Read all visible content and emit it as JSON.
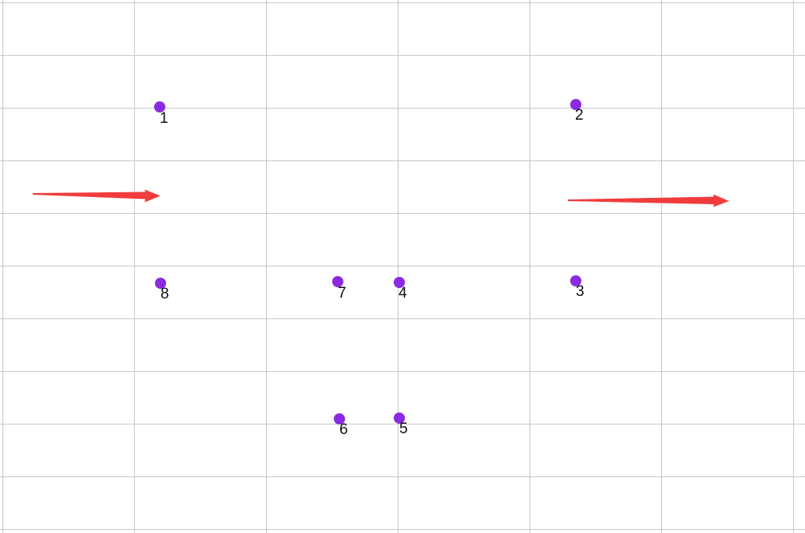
{
  "colors": {
    "background": "#ffffff",
    "grid_line": "#c8c8c8",
    "point": "#8a2be2",
    "arrow": "#f03c3c",
    "label": "#111111"
  },
  "points": [
    {
      "id": "1",
      "label": "1"
    },
    {
      "id": "2",
      "label": "2"
    },
    {
      "id": "3",
      "label": "3"
    },
    {
      "id": "4",
      "label": "4"
    },
    {
      "id": "5",
      "label": "5"
    },
    {
      "id": "6",
      "label": "6"
    },
    {
      "id": "7",
      "label": "7"
    },
    {
      "id": "8",
      "label": "8"
    }
  ],
  "arrows": [
    {
      "id": "left",
      "direction": "right"
    },
    {
      "id": "right",
      "direction": "right"
    }
  ]
}
